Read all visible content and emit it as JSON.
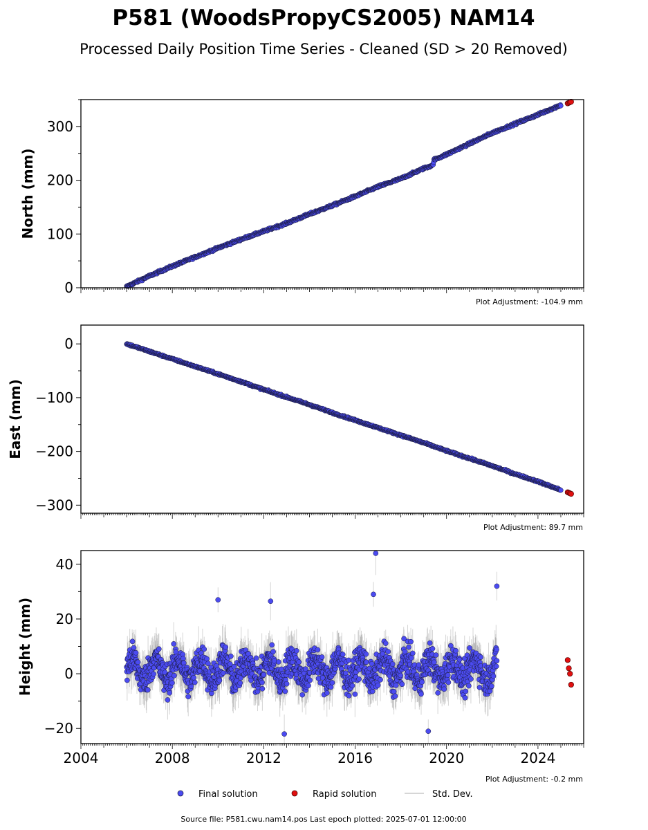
{
  "title": "P581 (WoodsPropyCS2005) NAM14",
  "subtitle": "Processed Daily Position Time Series - Cleaned (SD > 20 Removed)",
  "footer": "Source file: P581.cwu.nam14.pos  Last epoch plotted: 2025-07-01 12:00:00",
  "legend": {
    "final_label": "Final solution",
    "rapid_label": "Rapid solution",
    "std_label": "Std. Dev."
  },
  "colors": {
    "final": "#4b4bf0",
    "final_edge": "#1a1a3a",
    "rapid": "#e01010",
    "std": "#a0a0a0",
    "axes": "#000000"
  },
  "chart_data": [
    {
      "type": "scatter",
      "ylabel": "North (mm)",
      "adjustment": "Plot Adjustment: -104.9 mm",
      "xlim": [
        2004,
        2026
      ],
      "ylim": [
        0,
        350
      ],
      "yticks": [
        0,
        100,
        200,
        300
      ],
      "yticklabels": [
        "0",
        "100",
        "200",
        "300"
      ],
      "series": [
        {
          "key": "final",
          "x": [
            2006.0,
            2007.0,
            2008.0,
            2009.0,
            2010.0,
            2011.0,
            2012.0,
            2013.0,
            2014.0,
            2015.0,
            2016.0,
            2017.0,
            2018.0,
            2019.0,
            2019.4,
            2019.45,
            2020.0,
            2021.0,
            2022.0,
            2023.0,
            2024.0,
            2025.0
          ],
          "y": [
            2,
            22,
            40,
            57,
            74,
            90,
            105,
            120,
            137,
            153,
            170,
            188,
            203,
            222,
            228,
            238,
            248,
            268,
            288,
            305,
            322,
            340
          ]
        },
        {
          "key": "rapid",
          "x": [
            2025.3,
            2025.35,
            2025.4,
            2025.45
          ],
          "y": [
            343,
            344,
            345,
            346
          ]
        }
      ],
      "notes": [
        "offset of about +10 mm near 2019.4"
      ]
    },
    {
      "type": "scatter",
      "ylabel": "East (mm)",
      "adjustment": "Plot Adjustment: 89.7 mm",
      "xlim": [
        2004,
        2026
      ],
      "ylim": [
        -315,
        35
      ],
      "yticks": [
        -300,
        -200,
        -100,
        0
      ],
      "yticklabels": [
        "−300",
        "−200",
        "−100",
        "0"
      ],
      "series": [
        {
          "key": "final",
          "x": [
            2006.0,
            2007.0,
            2008.0,
            2009.0,
            2010.0,
            2011.0,
            2012.0,
            2013.0,
            2014.0,
            2015.0,
            2016.0,
            2017.0,
            2018.0,
            2019.0,
            2020.0,
            2021.0,
            2022.0,
            2023.0,
            2024.0,
            2025.0
          ],
          "y": [
            0,
            -14,
            -28,
            -42,
            -56,
            -70,
            -85,
            -99,
            -113,
            -128,
            -142,
            -156,
            -170,
            -184,
            -199,
            -213,
            -227,
            -242,
            -256,
            -272
          ]
        },
        {
          "key": "rapid",
          "x": [
            2025.3,
            2025.35,
            2025.4,
            2025.45
          ],
          "y": [
            -276,
            -277,
            -278,
            -279
          ]
        }
      ]
    },
    {
      "type": "scatter",
      "ylabel": "Height (mm)",
      "adjustment": "Plot Adjustment: -0.2 mm",
      "xlim": [
        2004,
        2026
      ],
      "ylim": [
        -25.5,
        45
      ],
      "yticks": [
        -20,
        0,
        20,
        40
      ],
      "yticklabels": [
        "−20",
        "0",
        "20",
        "40"
      ],
      "xticks": [
        2004,
        2008,
        2012,
        2016,
        2020,
        2024
      ],
      "xticklabels": [
        "2004",
        "2008",
        "2012",
        "2016",
        "2020",
        "2024"
      ],
      "series": [
        {
          "key": "final",
          "x": [
            2006.0,
            2010.0,
            2012.3,
            2012.9,
            2016.9,
            2016.8,
            2019.2,
            2022.2
          ],
          "y": [
            2,
            27,
            26.5,
            -22,
            44,
            29,
            -21,
            32
          ],
          "mean_range": [
            -5,
            8
          ]
        },
        {
          "key": "rapid",
          "x": [
            2025.3,
            2025.35,
            2025.4,
            2025.45
          ],
          "y": [
            5,
            2,
            0,
            -4
          ]
        }
      ]
    }
  ]
}
